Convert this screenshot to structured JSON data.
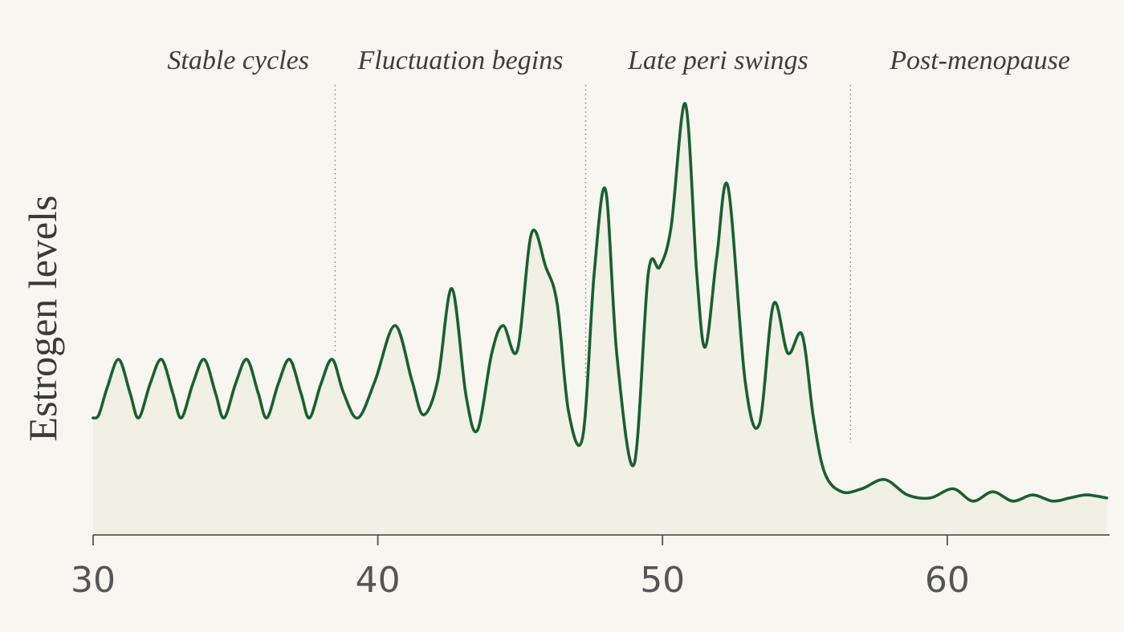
{
  "chart_data": {
    "type": "line",
    "title": "",
    "xlabel": "",
    "ylabel": "Estrogen levels",
    "xlim": [
      30,
      65.7
    ],
    "ylim": [
      0,
      10
    ],
    "x_ticks": [
      30,
      40,
      50,
      60
    ],
    "grid": false,
    "legend": "none",
    "phases": [
      {
        "label": "Stable cycles",
        "divider_x": 38.5
      },
      {
        "label": "Fluctuation begins",
        "divider_x": 47.3
      },
      {
        "label": "Late peri swings",
        "divider_x": 56.6
      },
      {
        "label": "Post-menopause",
        "divider_x": null
      }
    ],
    "series": [
      {
        "color": "#1b5e32",
        "fill_color": "#f0f0e4",
        "x": [
          30,
          30.2,
          30.5,
          30.9,
          31.3,
          31.6,
          32.0,
          32.4,
          32.8,
          33.1,
          33.5,
          33.9,
          34.3,
          34.6,
          35.0,
          35.4,
          35.8,
          36.1,
          36.5,
          36.9,
          37.3,
          37.6,
          38.0,
          38.4,
          38.8,
          39.3,
          39.9,
          40.6,
          41.2,
          41.6,
          42.1,
          42.6,
          43.1,
          43.5,
          44.0,
          44.4,
          44.9,
          45.4,
          45.9,
          46.3,
          46.7,
          47.2,
          47.6,
          48.0,
          48.4,
          49.0,
          49.5,
          49.9,
          50.3,
          50.8,
          51.2,
          51.5,
          51.9,
          52.3,
          52.9,
          53.4,
          53.9,
          54.4,
          54.9,
          55.3,
          55.7,
          56.3,
          57.0,
          57.8,
          58.6,
          59.4,
          60.2,
          60.9,
          61.6,
          62.3,
          63.0,
          63.7,
          64.3,
          64.9,
          65.6
        ],
        "y": [
          3.8,
          3.9,
          4.8,
          5.7,
          4.6,
          3.8,
          4.9,
          5.7,
          4.6,
          3.8,
          4.9,
          5.7,
          4.6,
          3.8,
          4.9,
          5.7,
          4.6,
          3.8,
          4.9,
          5.7,
          4.6,
          3.8,
          4.9,
          5.7,
          4.6,
          3.8,
          5.0,
          6.8,
          5.0,
          3.9,
          5.0,
          8.0,
          4.5,
          3.4,
          5.9,
          6.8,
          6.0,
          9.8,
          8.7,
          7.5,
          4.0,
          3.2,
          8.5,
          11.2,
          5.8,
          2.3,
          8.5,
          8.7,
          10.0,
          14.0,
          8.5,
          6.1,
          9.0,
          11.3,
          5.0,
          3.6,
          7.5,
          5.9,
          6.5,
          3.8,
          2.0,
          1.4,
          1.5,
          1.8,
          1.3,
          1.2,
          1.5,
          1.1,
          1.4,
          1.1,
          1.3,
          1.1,
          1.2,
          1.3,
          1.2
        ]
      }
    ]
  }
}
